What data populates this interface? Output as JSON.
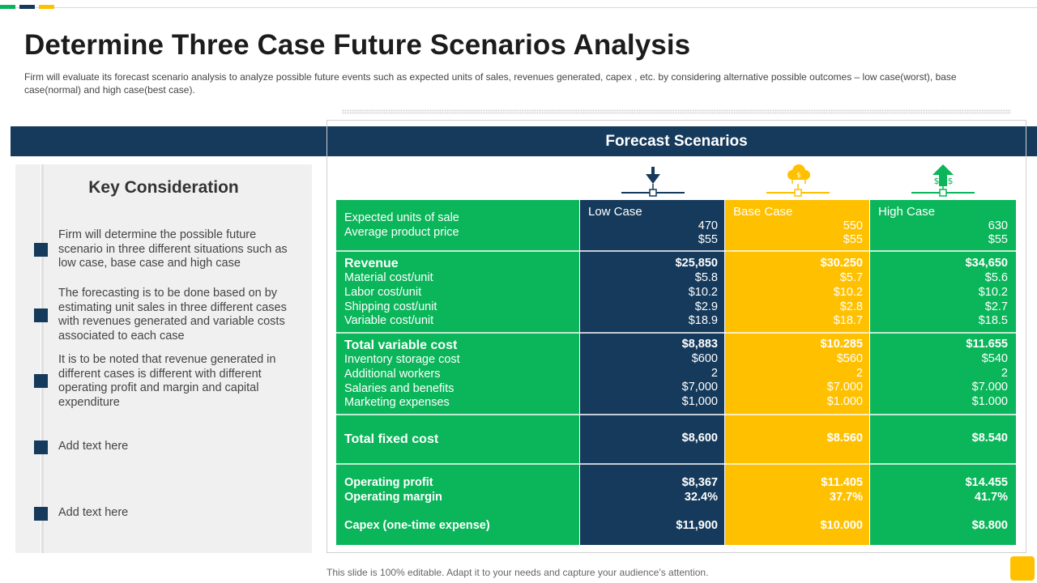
{
  "slide": {
    "title": "Determine Three Case Future Scenarios Analysis",
    "subtitle": "Firm will evaluate its forecast scenario analysis to analyze possible future events such as expected units of sales, revenues generated, capex , etc. by considering alternative possible outcomes – low case(worst), base case(normal) and high case(best case).",
    "footer": "This slide is 100% editable. Adapt it to your needs and capture your audience’s attention."
  },
  "colors": {
    "navy": "#153a5b",
    "green": "#0bb55a",
    "yellow": "#ffc000"
  },
  "key_consideration": {
    "title": "Key Consideration",
    "items": [
      "Firm will determine the possible future scenario in three different situations such as low case, base case and high case",
      "The forecasting is to be done based on by estimating unit sales in three different cases with revenues generated  and variable costs associated to each case",
      "It is to be noted that revenue generated in different cases is different with different operating profit and margin and capital expenditure",
      "Add text here",
      "Add text here"
    ]
  },
  "forecast": {
    "band_title": "Forecast Scenarios",
    "icons": [
      "arrow-down-icon",
      "cloud-dollar-icon",
      "money-arrow-up-icon"
    ],
    "case_headers": {
      "low": "Low Case",
      "base": "Base Case",
      "high": "High Case"
    },
    "labels": {
      "units": "Expected units of sale",
      "price": "Average product price",
      "revenue": "Revenue",
      "material": "Material cost/unit",
      "labor": "Labor cost/unit",
      "shipping": "Shipping cost/unit",
      "variable": "Variable cost/unit",
      "total_variable": "Total variable cost",
      "inventory": "Inventory storage cost",
      "workers": "Additional workers",
      "salaries": "Salaries and benefits",
      "marketing": "Marketing expenses",
      "total_fixed": "Total fixed cost",
      "op_profit": "Operating profit",
      "op_margin": "Operating margin",
      "capex": "Capex (one-time expense)"
    },
    "low": {
      "units": "470",
      "price": "$55",
      "revenue": "$25,850",
      "material": "$5.8",
      "labor": "$10.2",
      "shipping": "$2.9",
      "variable": "$18.9",
      "total_variable": "$8,883",
      "inventory": "$600",
      "workers": "2",
      "salaries": "$7,000",
      "marketing": "$1,000",
      "total_fixed": "$8,600",
      "op_profit": "$8,367",
      "op_margin": "32.4%",
      "capex": "$11,900"
    },
    "base": {
      "units": "550",
      "price": "$55",
      "revenue": "$30.250",
      "material": "$5.7",
      "labor": "$10.2",
      "shipping": "$2.8",
      "variable": "$18.7",
      "total_variable": "$10.285",
      "inventory": "$560",
      "workers": "2",
      "salaries": "$7.000",
      "marketing": "$1.000",
      "total_fixed": "$8.560",
      "op_profit": "$11.405",
      "op_margin": "37.7%",
      "capex": "$10.000"
    },
    "high": {
      "units": "630",
      "price": "$55",
      "revenue": "$34,650",
      "material": "$5.6",
      "labor": "$10.2",
      "shipping": "$2.7",
      "variable": "$18.5",
      "total_variable": "$11.655",
      "inventory": "$540",
      "workers": "2",
      "salaries": "$7.000",
      "marketing": "$1.000",
      "total_fixed": "$8.540",
      "op_profit": "$14.455",
      "op_margin": "41.7%",
      "capex": "$8.800"
    }
  }
}
